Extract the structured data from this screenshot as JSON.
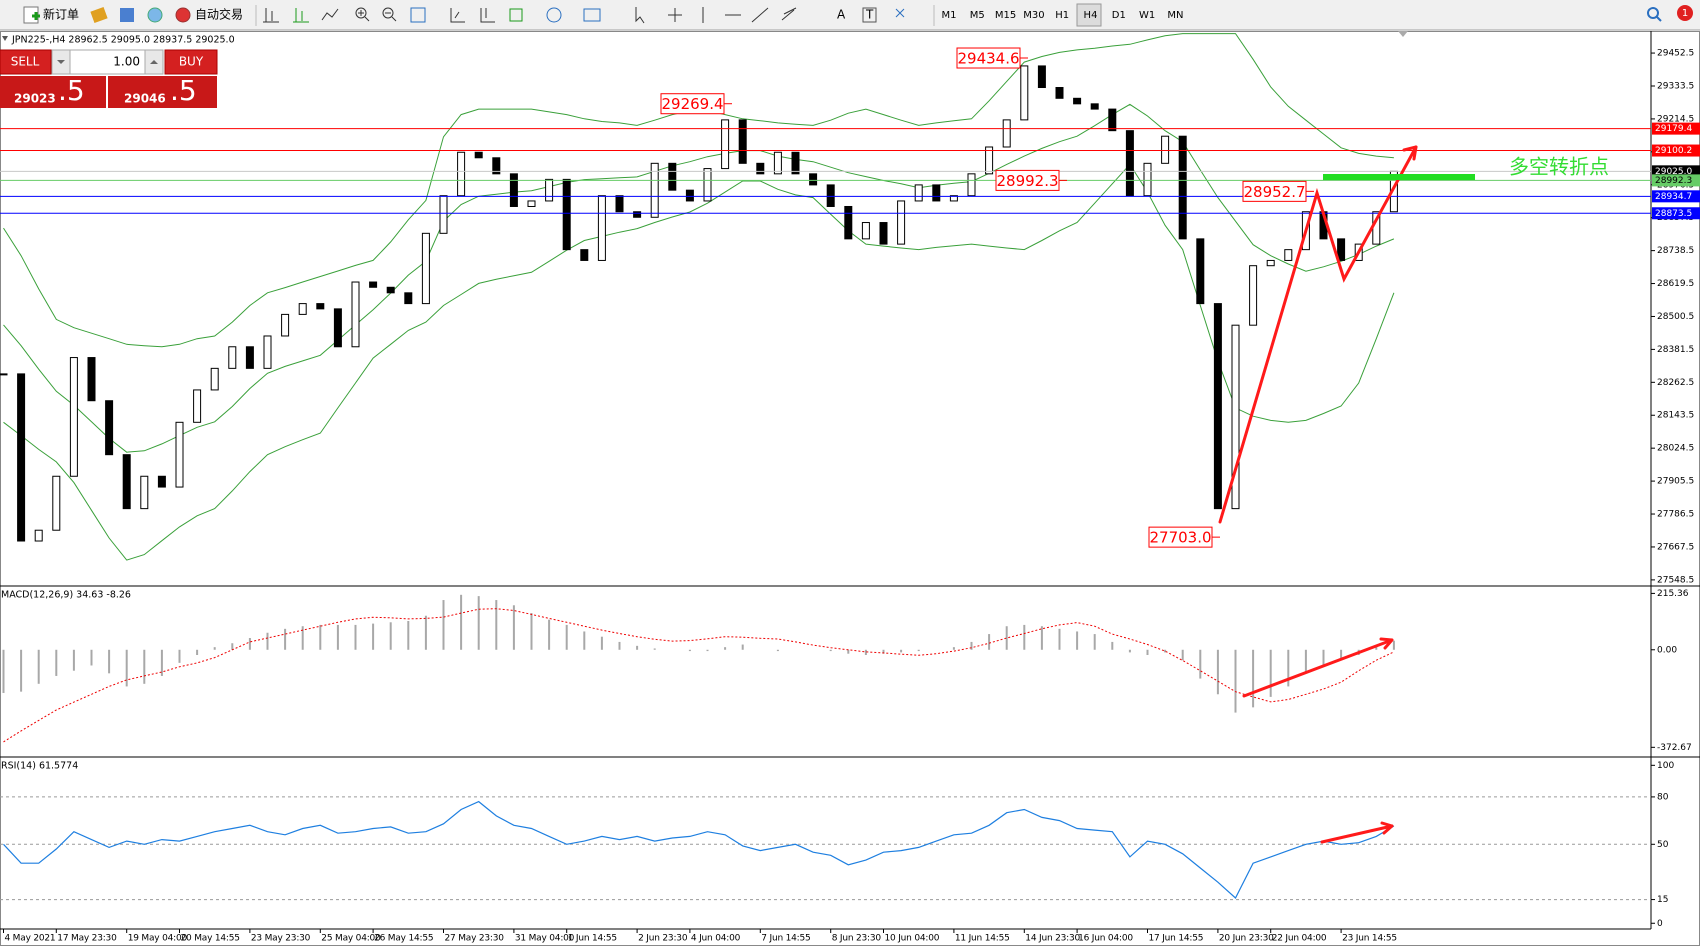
{
  "toolbar": {
    "new_order": "新订单",
    "auto_trade": "自动交易",
    "text_tool": "A",
    "label_tool": "T",
    "timeframes": [
      "M1",
      "M5",
      "M15",
      "M30",
      "H1",
      "H4",
      "D1",
      "W1",
      "MN"
    ],
    "notifications": "1"
  },
  "trade_panel": {
    "sell": "SELL",
    "buy": "BUY",
    "volume": "1.00",
    "sell_big": "29023",
    "sell_small": ".5",
    "buy_big": "29046",
    "buy_small": ".5"
  },
  "chart_data": [
    {
      "type": "candlestick",
      "title": "JPN225-,H4 28962.5 29095.0 28937.5 29025.0",
      "up_color": "#ffffff",
      "down_color": "#000000",
      "categories": [
        "4 May 2021",
        null,
        null,
        "17 May 23:30",
        null,
        null,
        null,
        "19 May 04:00",
        null,
        null,
        "20 May 14:55",
        null,
        null,
        null,
        "23 May 23:30",
        null,
        null,
        null,
        "25 May 04:00",
        null,
        null,
        "26 May 14:55",
        null,
        null,
        null,
        "27 May 23:30",
        null,
        null,
        null,
        "31 May 04:00",
        null,
        null,
        "1 Jun 14:55",
        null,
        null,
        null,
        "2 Jun 23:30",
        null,
        null,
        "4 Jun 04:00",
        null,
        null,
        null,
        "7 Jun 14:55",
        null,
        null,
        null,
        "8 Jun 23:30",
        null,
        null,
        "10 Jun 04:00",
        null,
        null,
        null,
        "11 Jun 14:55",
        null,
        null,
        null,
        "14 Jun 23:30",
        null,
        null,
        "16 Jun 04:00",
        null,
        null,
        null,
        "17 Jun 14:55",
        null,
        null,
        null,
        "20 Jun 23:30",
        null,
        null,
        "22 Jun 04:00",
        null,
        null,
        null,
        "23 Jun 14:55",
        null,
        null,
        null
      ],
      "values": [
        28293,
        27689,
        27728,
        27923,
        28352,
        28196,
        28001,
        27806,
        27923,
        27884,
        28118,
        28235,
        28313,
        28391,
        28313,
        28430,
        28508,
        28547,
        28528,
        28391,
        28625,
        28606,
        28586,
        28547,
        28801,
        28937,
        29094,
        29074,
        29016,
        28898,
        28918,
        28996,
        28742,
        28703,
        28937,
        28879,
        28859,
        29054,
        28957,
        28918,
        29035,
        29211,
        29054,
        29016,
        29094,
        29016,
        28976,
        28898,
        28781,
        28840,
        28762,
        28918,
        28976,
        28918,
        28937,
        29016,
        29113,
        29211,
        29406,
        29328,
        29289,
        29269,
        29250,
        29172,
        28937,
        29054,
        29152,
        28781,
        28547,
        27806,
        28469,
        28684,
        28703,
        28742,
        28879,
        28781,
        28703,
        28762,
        28879,
        29025
      ],
      "bands": {
        "color": "#3aa03a",
        "upper": [
          28820,
          28720,
          28600,
          28490,
          28460,
          28440,
          28420,
          28400,
          28395,
          28391,
          28400,
          28420,
          28430,
          28480,
          28540,
          28586,
          28605,
          28625,
          28645,
          28665,
          28685,
          28703,
          28770,
          28850,
          28920,
          29150,
          29230,
          29250,
          29250,
          29250,
          29250,
          29240,
          29230,
          29215,
          29205,
          29200,
          29191,
          29210,
          29230,
          29245,
          29245,
          29230,
          29215,
          29208,
          29200,
          29195,
          29191,
          29210,
          29235,
          29250,
          29230,
          29210,
          29191,
          29200,
          29208,
          29215,
          29280,
          29350,
          29420,
          29440,
          29455,
          29464,
          29470,
          29478,
          29484,
          29500,
          29515,
          29523,
          29523,
          29523,
          29523,
          29430,
          29330,
          29260,
          29210,
          29160,
          29110,
          29090,
          29080,
          29074
        ],
        "middle": [
          28470,
          28395,
          28310,
          28230,
          28180,
          28120,
          28060,
          28010,
          28015,
          28040,
          28070,
          28100,
          28120,
          28175,
          28240,
          28295,
          28320,
          28340,
          28360,
          28415,
          28470,
          28525,
          28585,
          28650,
          28700,
          28845,
          28905,
          28935,
          28942,
          28950,
          28955,
          28970,
          28985,
          28995,
          28998,
          29002,
          29005,
          29025,
          29045,
          29060,
          29078,
          29090,
          29100,
          29100,
          29080,
          29068,
          29060,
          29040,
          29020,
          29006,
          28992,
          28980,
          28966,
          28975,
          28982,
          28988,
          29018,
          29050,
          29080,
          29108,
          29132,
          29152,
          29190,
          29230,
          29267,
          29225,
          29172,
          29132,
          29030,
          28930,
          28845,
          28760,
          28720,
          28690,
          28664,
          28680,
          28700,
          28725,
          28755,
          28781
        ],
        "lower": [
          28118,
          28070,
          28020,
          27975,
          27900,
          27800,
          27700,
          27620,
          27640,
          27690,
          27740,
          27780,
          27806,
          27870,
          27940,
          28001,
          28030,
          28055,
          28079,
          28170,
          28260,
          28350,
          28400,
          28450,
          28480,
          28540,
          28580,
          28620,
          28635,
          28648,
          28660,
          28700,
          28740,
          28775,
          28790,
          28805,
          28818,
          28840,
          28860,
          28878,
          28910,
          28950,
          28990,
          28990,
          28960,
          28940,
          28930,
          28870,
          28810,
          28762,
          28755,
          28748,
          28742,
          28750,
          28756,
          28762,
          28755,
          28748,
          28742,
          28775,
          28810,
          28840,
          28910,
          28980,
          29050,
          28950,
          28830,
          28742,
          28540,
          28340,
          28170,
          28140,
          28125,
          28118,
          28125,
          28150,
          28177,
          28260,
          28420,
          28586
        ]
      },
      "ylim": [
        27530,
        29525
      ],
      "yticks": [
        29452.5,
        29333.5,
        29214.5,
        29095.5,
        28976.5,
        28857.5,
        28738.5,
        28619.5,
        28500.5,
        28381.5,
        28262.5,
        28143.5,
        28024.5,
        27905.5,
        27786.5,
        27667.5,
        27548.5
      ],
      "levels": [
        {
          "value": 29179.4,
          "color": "#ff0000"
        },
        {
          "value": 29100.2,
          "color": "#ff0000"
        },
        {
          "value": 29025,
          "label": "29025.0",
          "color": "#c8c8c8",
          "label_bg": "#000000"
        },
        {
          "value": 28992.3,
          "color": "#66cc66",
          "text_color": "#000000"
        },
        {
          "value": 28934.7,
          "color": "#0000ff"
        },
        {
          "value": 28873.5,
          "color": "#0000ff"
        }
      ],
      "annotations": [
        29434.6,
        29269.4,
        28992.3,
        28952.7,
        {
          "value": 27703,
          "label": "27703.0"
        }
      ],
      "annotation_color": "#ff0000",
      "note": "多空转折点",
      "note_color": "#33dd33"
    },
    {
      "type": "macd",
      "title": "MACD(12,26,9) 34.63 -8.26",
      "color": "#a8a8a8",
      "signal_color": "#ee0000",
      "values": [
        -165,
        -160,
        -130,
        -100,
        -80,
        -60,
        -90,
        -140,
        -130,
        -100,
        -50,
        -20,
        10,
        25,
        45,
        65,
        80,
        90,
        95,
        95,
        95,
        100,
        105,
        110,
        130,
        190,
        210,
        205,
        190,
        170,
        140,
        115,
        95,
        70,
        50,
        30,
        15,
        5,
        0,
        -5,
        -5,
        10,
        20,
        0,
        -5,
        0,
        0,
        -5,
        -15,
        -20,
        -15,
        -10,
        -5,
        0,
        10,
        30,
        60,
        90,
        95,
        90,
        80,
        70,
        60,
        30,
        -10,
        -20,
        -10,
        -40,
        -110,
        -170,
        -240,
        -220,
        -180,
        -140,
        -90,
        -60,
        -40,
        -20,
        10,
        34.63
      ],
      "signal": [
        -352,
        -310,
        -270,
        -230,
        -200,
        -170,
        -140,
        -115,
        -100,
        -85,
        -65,
        -50,
        -30,
        0,
        30,
        45,
        60,
        75,
        90,
        105,
        118,
        124,
        122,
        118,
        120,
        125,
        140,
        155,
        157,
        150,
        135,
        120,
        105,
        90,
        75,
        62,
        50,
        40,
        33,
        35,
        42,
        50,
        48,
        44,
        41,
        30,
        18,
        8,
        0,
        -8,
        -12,
        -17,
        -21,
        -15,
        -5,
        8,
        25,
        45,
        62,
        80,
        95,
        104,
        90,
        60,
        41,
        20,
        -5,
        -41,
        -80,
        -120,
        -160,
        -180,
        -199,
        -190,
        -170,
        -150,
        -124,
        -80,
        -40,
        -8.26
      ],
      "ylim": [
        -402,
        236
      ],
      "yticks": [
        215.36,
        {
          "value": 0,
          "label": "0.00"
        },
        -372.67
      ]
    },
    {
      "type": "line",
      "title": "RSI(14) 61.5774",
      "color": "#1e7fe0",
      "values": [
        50,
        38,
        38,
        47,
        58,
        53,
        48,
        52,
        50,
        53,
        52,
        55,
        58,
        60,
        62,
        58,
        56,
        60,
        62,
        57,
        58,
        60,
        61,
        57,
        58,
        63,
        72,
        77,
        68,
        62,
        60,
        55,
        50,
        52,
        55,
        53,
        55,
        52,
        54,
        55,
        58,
        56,
        49,
        46,
        48,
        50,
        45,
        43,
        37,
        40,
        45,
        46,
        48,
        52,
        56,
        57,
        62,
        70,
        72,
        67,
        65,
        60,
        59,
        58,
        42,
        52,
        50,
        44,
        35,
        26,
        16,
        38,
        42,
        46,
        50,
        52,
        50,
        51,
        55,
        61.5774
      ],
      "ylim": [
        -3,
        104
      ],
      "yticks": [
        100,
        80,
        50,
        15,
        0
      ],
      "levels": [
        80,
        50,
        15
      ]
    }
  ]
}
